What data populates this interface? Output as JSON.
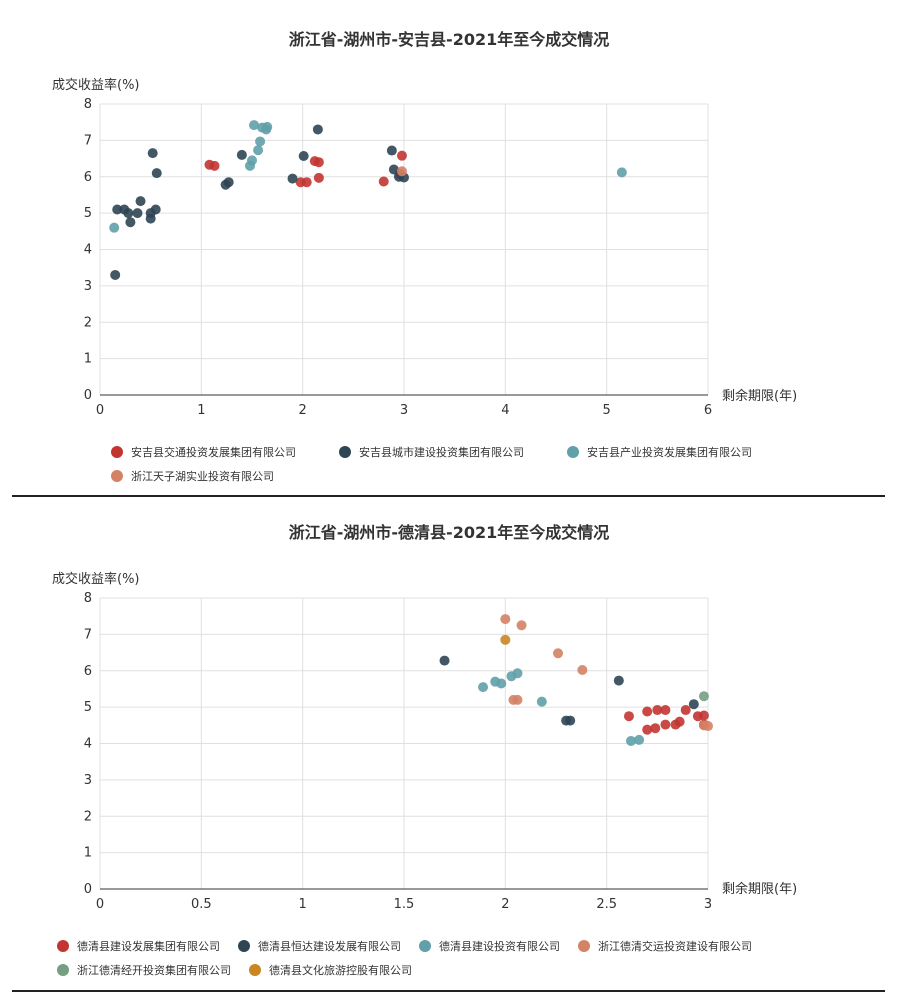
{
  "charts": [
    {
      "chart_data": {
        "type": "scatter",
        "title": "浙江省-湖州市-安吉县-2021年至今成交情况",
        "xlabel": "剩余期限(年)",
        "ylabel": "成交收益率(%)",
        "xlim": [
          0,
          6
        ],
        "ylim": [
          0,
          8
        ],
        "xticks": [
          "0",
          "1",
          "2",
          "3",
          "4",
          "5",
          "6"
        ],
        "yticks": [
          "0",
          "1",
          "2",
          "3",
          "4",
          "5",
          "6",
          "7",
          "8"
        ],
        "grid": true,
        "legend_position": "bottom-left",
        "series": [
          {
            "name": "安吉县交通投资发展集团有限公司",
            "color": "#c23531",
            "points": [
              [
                1.08,
                6.33
              ],
              [
                1.13,
                6.3
              ],
              [
                1.98,
                5.85
              ],
              [
                2.04,
                5.85
              ],
              [
                2.12,
                6.43
              ],
              [
                2.16,
                6.4
              ],
              [
                2.16,
                5.97
              ],
              [
                2.8,
                5.87
              ],
              [
                2.96,
                6.08
              ],
              [
                2.98,
                6.58
              ]
            ]
          },
          {
            "name": "安吉县城市建设投资集团有限公司",
            "color": "#2f4554",
            "points": [
              [
                0.15,
                3.3
              ],
              [
                0.17,
                5.1
              ],
              [
                0.24,
                5.1
              ],
              [
                0.28,
                5.0
              ],
              [
                0.3,
                4.75
              ],
              [
                0.37,
                5.0
              ],
              [
                0.4,
                5.33
              ],
              [
                0.5,
                4.85
              ],
              [
                0.5,
                5.0
              ],
              [
                0.52,
                6.65
              ],
              [
                0.55,
                5.1
              ],
              [
                0.56,
                6.1
              ],
              [
                1.24,
                5.78
              ],
              [
                1.27,
                5.85
              ],
              [
                1.4,
                6.6
              ],
              [
                1.9,
                5.95
              ],
              [
                2.01,
                6.57
              ],
              [
                2.15,
                7.3
              ],
              [
                2.88,
                6.72
              ],
              [
                2.9,
                6.2
              ],
              [
                2.95,
                6.0
              ],
              [
                3.0,
                5.98
              ]
            ]
          },
          {
            "name": "安吉县产业投资发展集团有限公司",
            "color": "#61a0a8",
            "points": [
              [
                0.14,
                4.6
              ],
              [
                1.48,
                6.3
              ],
              [
                1.5,
                6.45
              ],
              [
                1.52,
                7.42
              ],
              [
                1.56,
                6.73
              ],
              [
                1.58,
                6.97
              ],
              [
                1.6,
                7.35
              ],
              [
                1.64,
                7.3
              ],
              [
                1.65,
                7.37
              ],
              [
                5.15,
                6.12
              ]
            ]
          },
          {
            "name": "浙江天子湖实业投资有限公司",
            "color": "#d48265",
            "points": [
              [
                2.98,
                6.15
              ]
            ]
          }
        ]
      }
    },
    {
      "chart_data": {
        "type": "scatter",
        "title": "浙江省-湖州市-德清县-2021年至今成交情况",
        "xlabel": "剩余期限(年)",
        "ylabel": "成交收益率(%)",
        "xlim": [
          0,
          3
        ],
        "ylim": [
          0,
          8
        ],
        "xticks": [
          "0",
          "0.5",
          "1",
          "1.5",
          "2",
          "2.5",
          "3"
        ],
        "yticks": [
          "0",
          "1",
          "2",
          "3",
          "4",
          "5",
          "6",
          "7",
          "8"
        ],
        "grid": true,
        "legend_position": "bottom-left",
        "series": [
          {
            "name": "德清县建设发展集团有限公司",
            "color": "#c23531",
            "points": [
              [
                2.61,
                4.75
              ],
              [
                2.7,
                4.88
              ],
              [
                2.7,
                4.38
              ],
              [
                2.74,
                4.42
              ],
              [
                2.75,
                4.92
              ],
              [
                2.79,
                4.92
              ],
              [
                2.79,
                4.52
              ],
              [
                2.84,
                4.52
              ],
              [
                2.86,
                4.6
              ],
              [
                2.89,
                4.92
              ],
              [
                2.95,
                4.75
              ],
              [
                2.98,
                4.77
              ],
              [
                2.98,
                4.52
              ]
            ]
          },
          {
            "name": "德清县恒达建设发展有限公司",
            "color": "#2f4554",
            "points": [
              [
                1.7,
                6.28
              ],
              [
                2.3,
                4.63
              ],
              [
                2.32,
                4.63
              ],
              [
                2.56,
                5.73
              ],
              [
                2.93,
                5.08
              ]
            ]
          },
          {
            "name": "德清县建设投资有限公司",
            "color": "#61a0a8",
            "points": [
              [
                1.89,
                5.55
              ],
              [
                1.95,
                5.7
              ],
              [
                1.98,
                5.65
              ],
              [
                2.03,
                5.85
              ],
              [
                2.06,
                5.93
              ],
              [
                2.18,
                5.15
              ],
              [
                2.62,
                4.07
              ],
              [
                2.66,
                4.1
              ]
            ]
          },
          {
            "name": "浙江德清交运投资建设有限公司",
            "color": "#d48265",
            "points": [
              [
                2.0,
                7.42
              ],
              [
                2.04,
                5.2
              ],
              [
                2.06,
                5.2
              ],
              [
                2.08,
                7.25
              ],
              [
                2.26,
                6.48
              ],
              [
                2.38,
                6.02
              ],
              [
                2.98,
                4.5
              ],
              [
                3.0,
                4.48
              ]
            ]
          },
          {
            "name": "浙江德清经开投资集团有限公司",
            "color": "#749f83",
            "points": [
              [
                2.98,
                5.3
              ]
            ]
          },
          {
            "name": "德清县文化旅游控股有限公司",
            "color": "#ca8622",
            "points": [
              [
                2.0,
                6.85
              ]
            ]
          }
        ]
      }
    }
  ]
}
